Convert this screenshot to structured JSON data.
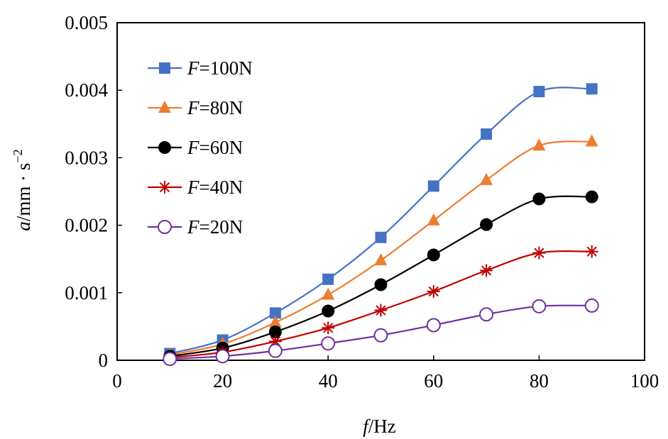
{
  "chart_data": {
    "type": "line",
    "xlabel_var": "f",
    "xlabel_unit": "/Hz",
    "ylabel_var": "a",
    "ylabel_unit": "/mm · s",
    "ylabel_exp": "−2",
    "xlim": [
      0,
      100
    ],
    "ylim": [
      0,
      0.005
    ],
    "xticks": [
      "0",
      "20",
      "40",
      "60",
      "80",
      "100"
    ],
    "yticks": [
      "0",
      "0.001",
      "0.002",
      "0.003",
      "0.004",
      "0.005"
    ],
    "grid": false,
    "legend_position": "top-left",
    "x": [
      10,
      20,
      30,
      40,
      50,
      60,
      70,
      80,
      90
    ],
    "series": [
      {
        "name": "100N",
        "name_var": "F=",
        "marker": "square",
        "color": "#4472C4",
        "values": [
          0.0001,
          0.0003,
          0.0007,
          0.0012,
          0.00182,
          0.00258,
          0.00335,
          0.00398,
          0.00402
        ]
      },
      {
        "name": "80N",
        "name_var": "F=",
        "marker": "triangle",
        "color": "#ED7D31",
        "values": [
          8e-05,
          0.00024,
          0.00056,
          0.00097,
          0.00148,
          0.00207,
          0.00267,
          0.00318,
          0.00324
        ]
      },
      {
        "name": "60N",
        "name_var": "F=",
        "marker": "filled-circle",
        "color": "#000000",
        "values": [
          6e-05,
          0.00018,
          0.00042,
          0.00073,
          0.00112,
          0.00156,
          0.00201,
          0.00239,
          0.00242
        ]
      },
      {
        "name": "40N",
        "name_var": "F=",
        "marker": "asterisk",
        "color": "#C00000",
        "values": [
          4e-05,
          0.00012,
          0.00028,
          0.00048,
          0.00074,
          0.00102,
          0.00133,
          0.00159,
          0.00161
        ]
      },
      {
        "name": "20N",
        "name_var": "F=",
        "marker": "open-circle",
        "color": "#7030A0",
        "values": [
          2e-05,
          6e-05,
          0.00014,
          0.00025,
          0.00037,
          0.00052,
          0.00068,
          0.0008,
          0.00081
        ]
      }
    ]
  }
}
